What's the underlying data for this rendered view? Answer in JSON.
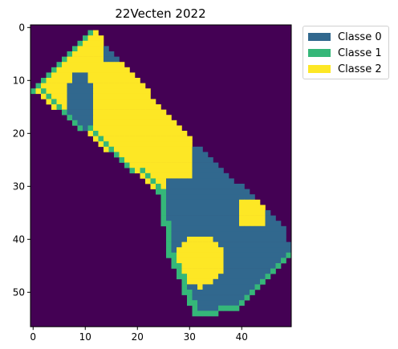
{
  "chart_data": {
    "type": "heatmap",
    "title": "22Vecten 2022",
    "xlabel": "",
    "ylabel": "",
    "x_ticks": [
      0,
      10,
      20,
      30,
      40
    ],
    "y_ticks": [
      0,
      10,
      20,
      30,
      40,
      50
    ],
    "xlim": [
      -0.5,
      49.5
    ],
    "ylim": [
      56.5,
      -0.5
    ],
    "grid": false,
    "legend_position": "outside-top-right",
    "background_class": {
      "value": "background",
      "color": "#440154"
    },
    "classes": [
      {
        "name": "Classe 0",
        "color": "#31688e"
      },
      {
        "name": "Classe 1",
        "color": "#35b779"
      },
      {
        "name": "Classe 2",
        "color": "#fde725"
      }
    ],
    "n_rows": 57,
    "n_cols": 50,
    "legend_entries": [
      "Classe 0",
      "Classe 1",
      "Classe 2"
    ]
  }
}
